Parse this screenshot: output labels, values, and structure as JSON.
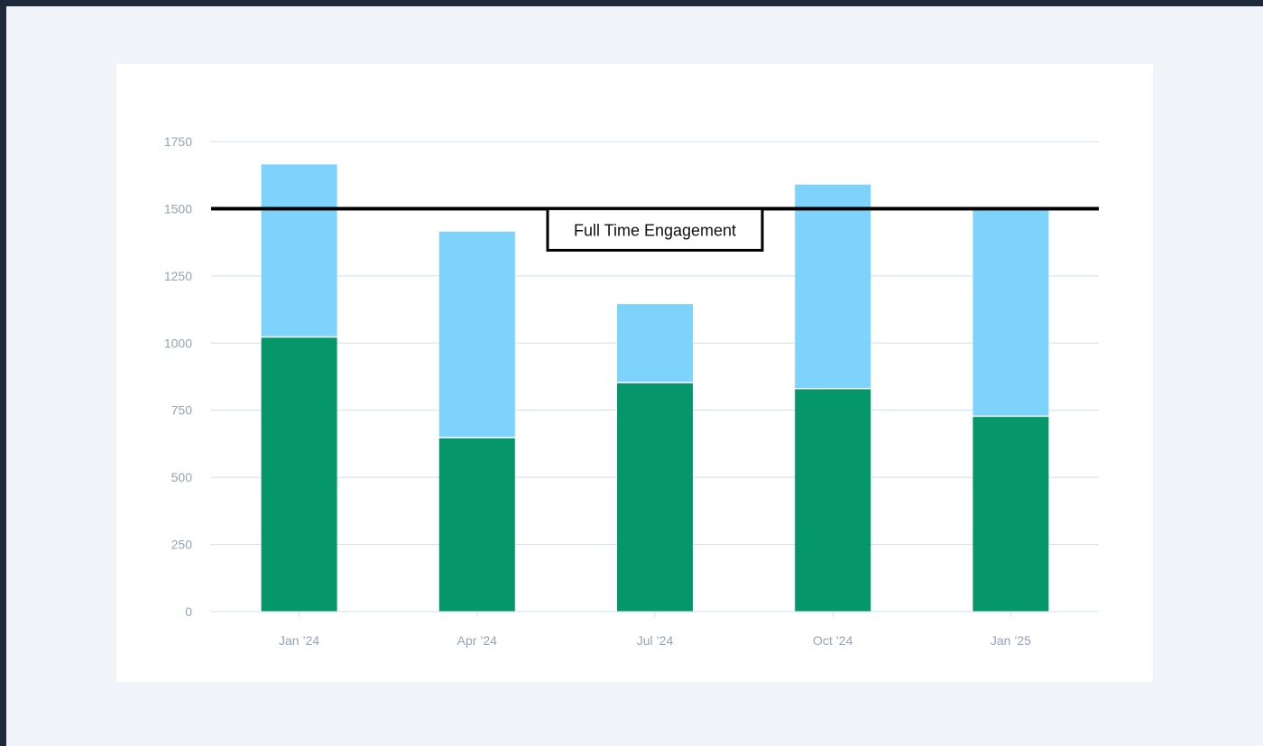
{
  "colors": {
    "page_background": "#f1f4f8",
    "frame": "#1e293b",
    "card_background": "#ffffff",
    "gridline": "#cfe0ea",
    "tick_text": "#94a3b8",
    "reference_line": "#000000"
  },
  "chart_data": {
    "type": "bar",
    "stacked": true,
    "categories": [
      "Jan ’24",
      "Apr ’24",
      "Jul ’24",
      "Oct ’24",
      "Jan ’25"
    ],
    "series": [
      {
        "color": "#059669",
        "values": [
          1020,
          645,
          850,
          828,
          725
        ]
      },
      {
        "color": "#7dd3fc",
        "values": [
          645,
          770,
          295,
          762,
          775
        ]
      }
    ],
    "ylim": [
      0,
      1750
    ],
    "yticks": [
      0,
      250,
      500,
      750,
      1000,
      1250,
      1500,
      1750
    ],
    "grid": true,
    "legend": "none",
    "reference_line": {
      "value": 1500,
      "label": "Full Time Engagement"
    },
    "title": "",
    "xlabel": "",
    "ylabel": ""
  }
}
